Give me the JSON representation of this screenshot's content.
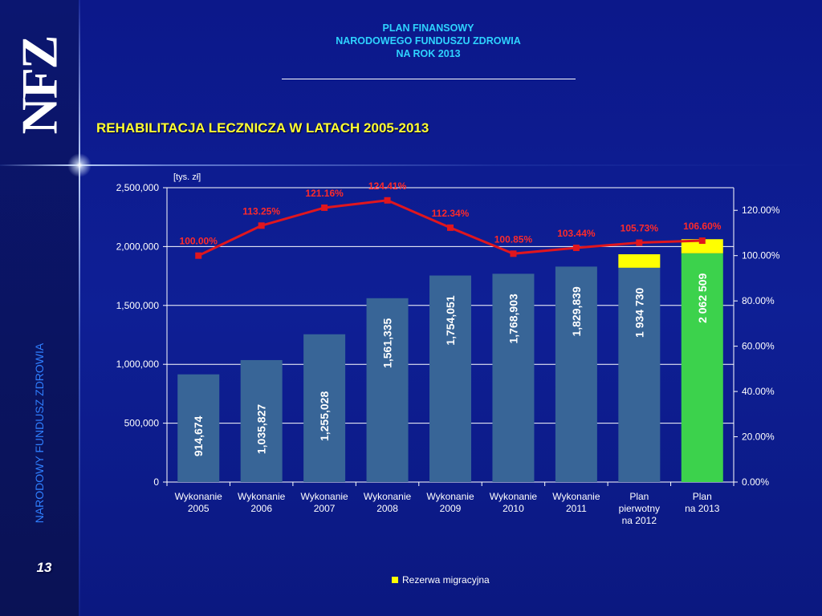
{
  "slide": {
    "logo": "NFZ",
    "side_label": "NARODOWY FUNDUSZ ZDROWIA",
    "page_number": "13",
    "header_lines": [
      "PLAN FINANSOWY",
      "NARODOWEGO FUNDUSZU ZDROWIA",
      "NA ROK 2013"
    ],
    "title": "REHABILITACJA LECZNICZA W LATACH 2005-2013"
  },
  "colors": {
    "bar": "#386597",
    "bar_plan_2013": "#3cd24c",
    "reserve": "#ffff00",
    "line": "#e0161e",
    "pct_label": "#ff2a2a"
  },
  "chart_data": {
    "type": "bar",
    "title": "",
    "unit": "[tys. zł]",
    "categories": [
      [
        "Wykonanie",
        "2005"
      ],
      [
        "Wykonanie",
        "2006"
      ],
      [
        "Wykonanie",
        "2007"
      ],
      [
        "Wykonanie",
        "2008"
      ],
      [
        "Wykonanie",
        "2009"
      ],
      [
        "Wykonanie",
        "2010"
      ],
      [
        "Wykonanie",
        "2011"
      ],
      [
        "Plan",
        "pierwotny",
        "na 2012"
      ],
      [
        "Plan",
        "na 2013"
      ]
    ],
    "series": [
      {
        "values": [
          914674,
          1035827,
          1255028,
          1561335,
          1754051,
          1768903,
          1829839,
          1820000,
          1943000
        ],
        "axis": "left"
      },
      {
        "name": "Rezerwa migracyjna",
        "values": [
          0,
          0,
          0,
          0,
          0,
          0,
          0,
          114730,
          119509
        ],
        "axis": "left",
        "stacked": true
      },
      {
        "values": [
          100.0,
          113.25,
          121.16,
          124.41,
          112.34,
          100.85,
          103.44,
          105.73,
          106.6
        ],
        "axis": "right",
        "type": "line"
      }
    ],
    "bar_labels": [
      "914,674",
      "1,035,827",
      "1,255,028",
      "1,561,335",
      "1,754,051",
      "1,768,903",
      "1,829,839",
      "1 934 730",
      "2 062 509"
    ],
    "line_labels": [
      "100.00%",
      "113.25%",
      "121.16%",
      "124.41%",
      "112.34%",
      "100.85%",
      "103.44%",
      "105.73%",
      "106.60%"
    ],
    "y_left": {
      "ticks": [
        0,
        500000,
        1000000,
        1500000,
        2000000,
        2500000
      ],
      "tick_labels": [
        "0",
        "500,000",
        "1,000,000",
        "1,500,000",
        "2,000,000",
        "2,500,000"
      ],
      "ylim": [
        0,
        2500000
      ]
    },
    "y_right": {
      "ticks": [
        0,
        20,
        40,
        60,
        80,
        100,
        120
      ],
      "tick_labels": [
        "0.00%",
        "20.00%",
        "40.00%",
        "60.00%",
        "80.00%",
        "100.00%",
        "120.00%"
      ],
      "ylim": [
        0,
        130
      ]
    },
    "grid": true,
    "legend": "bottom",
    "legend_entries": [
      "Rezerwa migracyjna"
    ]
  }
}
